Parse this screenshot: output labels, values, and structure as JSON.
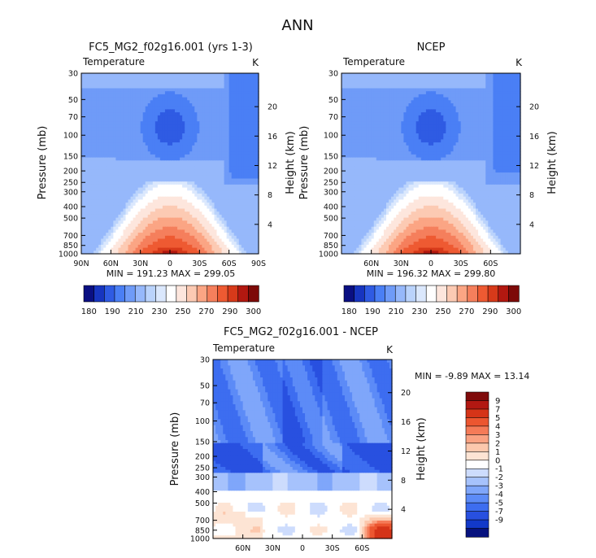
{
  "figure": {
    "title": "ANN"
  },
  "colors": {
    "abs_levels": [
      "#0a0f82",
      "#1735c0",
      "#2f5be3",
      "#4a7ff5",
      "#6f9bf8",
      "#96b8fb",
      "#bad3fc",
      "#dbe8fd",
      "#ffffff",
      "#fde6dd",
      "#fccab3",
      "#fba584",
      "#f57f5c",
      "#ee5a32",
      "#d73a1a",
      "#b21810",
      "#7d0a08"
    ],
    "diff_levels": [
      "#06127e",
      "#1239c9",
      "#2850e0",
      "#3d6df0",
      "#5c8bf7",
      "#7fa6fa",
      "#a6c2fc",
      "#cddcfd",
      "#ffffff",
      "#fde4d4",
      "#fcc8ad",
      "#faa282",
      "#f57b58",
      "#ec5630",
      "#d53418",
      "#b21812",
      "#7f0a0a"
    ]
  },
  "chart_data": [
    {
      "type": "heatmap",
      "panel_id": "model",
      "title": "FC5_MG2_f02g16.001 (yrs 1-3)",
      "variable_label": "Temperature",
      "units_label": "K",
      "ylabel": "Pressure (mb)",
      "ylabel_right": "Height (km)",
      "pressure_ticks": [
        "30",
        "50",
        "70",
        "100",
        "150",
        "200",
        "250",
        "300",
        "400",
        "500",
        "700",
        "850",
        "1000"
      ],
      "height_ticks": [
        "20",
        "16",
        "12",
        "8",
        "4"
      ],
      "lat_ticks": [
        "90N",
        "60N",
        "30N",
        "0",
        "30S",
        "60S",
        "90S"
      ],
      "lat_range": [
        90,
        -90
      ],
      "min_max_text": "MIN = 191.23   MAX = 299.05",
      "min": 191.23,
      "max": 299.05
    },
    {
      "type": "heatmap",
      "panel_id": "obs",
      "title": "NCEP",
      "variable_label": "Temperature",
      "units_label": "K",
      "ylabel": "Pressure (mb)",
      "ylabel_right": "Height (km)",
      "pressure_ticks": [
        "30",
        "50",
        "70",
        "100",
        "150",
        "200",
        "250",
        "300",
        "400",
        "500",
        "700",
        "850",
        "1000"
      ],
      "height_ticks": [
        "20",
        "16",
        "12",
        "8",
        "4"
      ],
      "lat_ticks": [
        "60N",
        "30N",
        "0",
        "30S",
        "60S"
      ],
      "lat_range": [
        90,
        -90
      ],
      "min_max_text": "MIN = 196.32   MAX = 299.80",
      "min": 196.32,
      "max": 299.8
    },
    {
      "type": "heatmap",
      "panel_id": "diff",
      "title": "FC5_MG2_f02g16.001 - NCEP",
      "variable_label": "Temperature",
      "units_label": "K",
      "ylabel": "Pressure (mb)",
      "ylabel_right": "Height (km)",
      "pressure_ticks": [
        "30",
        "50",
        "70",
        "100",
        "150",
        "200",
        "250",
        "300",
        "400",
        "500",
        "700",
        "850",
        "1000"
      ],
      "height_ticks": [
        "20",
        "16",
        "12",
        "8",
        "4"
      ],
      "lat_ticks": [
        "60N",
        "30N",
        "0",
        "30S",
        "60S"
      ],
      "lat_range": [
        90,
        -90
      ],
      "min_max_text": "MIN =   -9.89   MAX =   13.14",
      "min": -9.89,
      "max": 13.14
    }
  ],
  "colorbars": {
    "abs": {
      "labels": [
        "180",
        "190",
        "210",
        "230",
        "250",
        "270",
        "290",
        "300"
      ]
    },
    "diff": {
      "labels": [
        "9",
        "7",
        "5",
        "4",
        "3",
        "2",
        "1",
        "0",
        "-1",
        "-2",
        "-3",
        "-4",
        "-5",
        "-7",
        "-9"
      ]
    }
  }
}
